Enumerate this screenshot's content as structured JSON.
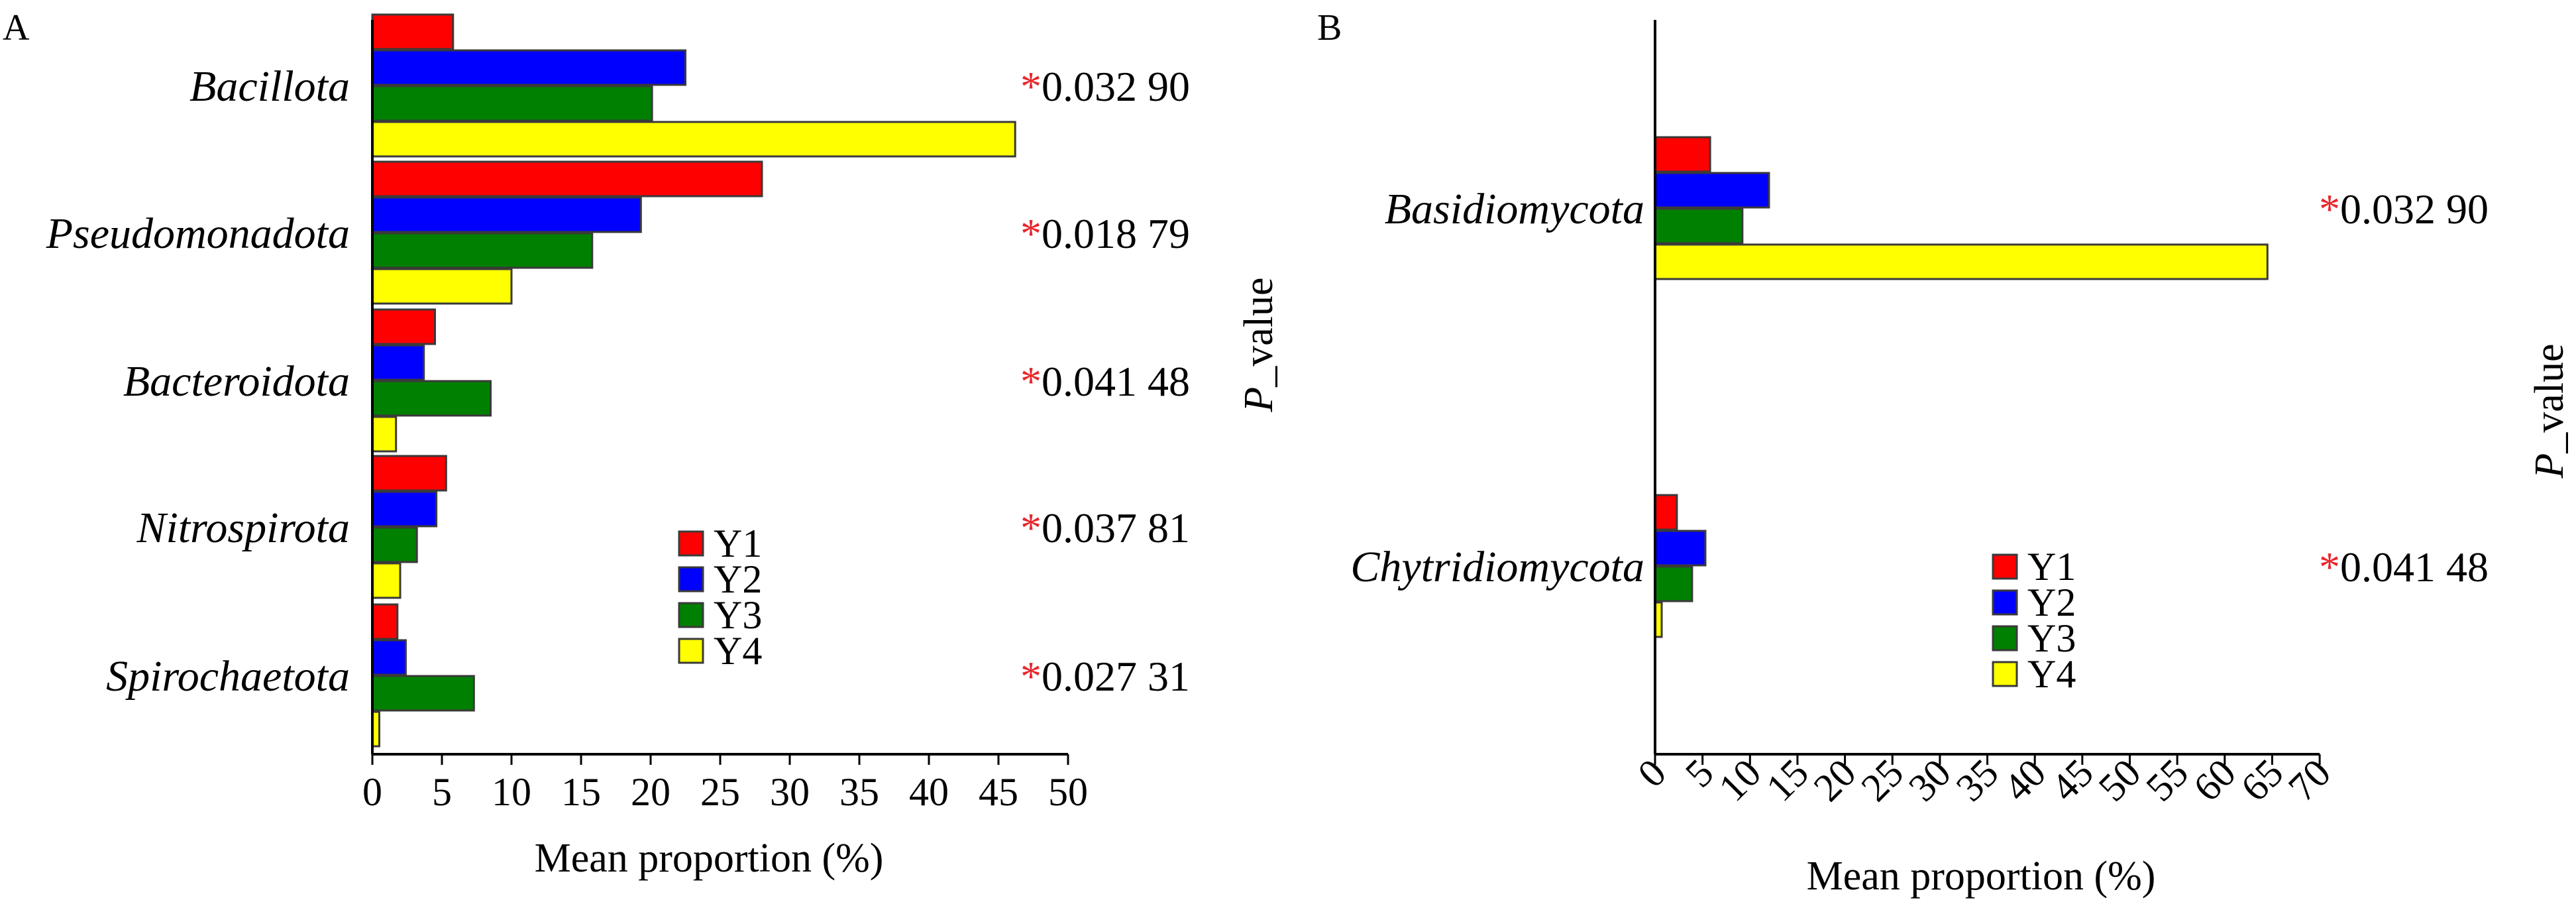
{
  "chart_data": [
    {
      "panel": "A",
      "type": "bar",
      "orientation": "horizontal",
      "categories": [
        "Bacillota",
        "Pseudomonadota",
        "Bacteroidota",
        "Nitrospirota",
        "Spirochaetota"
      ],
      "series": [
        {
          "name": "Y1",
          "color": "#ff0000",
          "values": [
            5.8,
            28.0,
            4.5,
            5.3,
            1.8
          ]
        },
        {
          "name": "Y2",
          "color": "#0000ff",
          "values": [
            22.5,
            19.3,
            3.7,
            4.6,
            2.4
          ]
        },
        {
          "name": "Y3",
          "color": "#008000",
          "values": [
            20.1,
            15.8,
            8.5,
            3.2,
            7.3
          ]
        },
        {
          "name": "Y4",
          "color": "#ffff00",
          "values": [
            46.2,
            10.0,
            1.7,
            2.0,
            0.5
          ]
        }
      ],
      "p_values": [
        "0.032 90",
        "0.018 79",
        "0.041 48",
        "0.037 81",
        "0.027 31"
      ],
      "significance_marker": "*",
      "significance_color": "#e8262b",
      "x_ticks": [
        "0",
        "5",
        "10",
        "15",
        "20",
        "25",
        "30",
        "35",
        "40",
        "45",
        "50"
      ],
      "xlim": [
        0,
        50
      ],
      "xlabel": "Mean proportion (%)",
      "right_axis_label_italic": "P",
      "right_axis_label_rest": "_value",
      "legend_placement": "lower-right"
    },
    {
      "panel": "B",
      "type": "bar",
      "orientation": "horizontal",
      "categories": [
        "Basidiomycota",
        "Chytridiomycota"
      ],
      "series": [
        {
          "name": "Y1",
          "color": "#ff0000",
          "values": [
            5.8,
            2.3
          ]
        },
        {
          "name": "Y2",
          "color": "#0000ff",
          "values": [
            12.0,
            5.3
          ]
        },
        {
          "name": "Y3",
          "color": "#008000",
          "values": [
            9.2,
            3.9
          ]
        },
        {
          "name": "Y4",
          "color": "#ffff00",
          "values": [
            64.5,
            0.7
          ]
        }
      ],
      "p_values": [
        "0.032 90",
        "0.041 48"
      ],
      "significance_marker": "*",
      "significance_color": "#e8262b",
      "x_ticks": [
        "0",
        "5",
        "10",
        "15",
        "20",
        "25",
        "30",
        "35",
        "40",
        "45",
        "50",
        "55",
        "60",
        "65",
        "70"
      ],
      "xlim": [
        0,
        70
      ],
      "xlabel": "Mean proportion (%)",
      "right_axis_label_italic": "P",
      "right_axis_label_rest": "_value",
      "legend_placement": "lower-right"
    }
  ]
}
